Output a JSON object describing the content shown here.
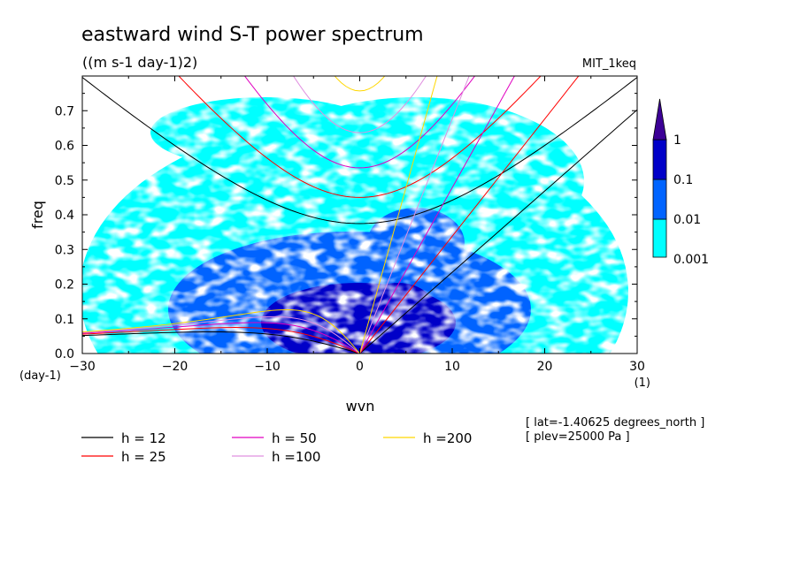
{
  "chart_data": {
    "type": "heatmap",
    "title": "eastward wind S-T power spectrum",
    "units": "((m s-1 day-1)2)",
    "model": "MIT_1keq",
    "xlabel": "wvn",
    "ylabel": "freq",
    "xunit": "(1)",
    "yunit": "(day-1)",
    "xlim": [
      -30,
      30
    ],
    "ylim": [
      0,
      0.8
    ],
    "xticks": [
      "-30",
      "-20",
      "-10",
      "0",
      "10",
      "20",
      "30"
    ],
    "yticks": [
      "0.0",
      "0.1",
      "0.2",
      "0.3",
      "0.4",
      "0.5",
      "0.6",
      "0.7"
    ],
    "colorbar": {
      "levels": [
        "0.001",
        "0.01",
        "0.1",
        "1"
      ],
      "colors": [
        "#00ffff",
        "#0064ff",
        "#0000c8",
        "#3c0096"
      ]
    },
    "dispersion_curves": [
      {
        "label": "h = 12",
        "h": 12,
        "color": "#000000"
      },
      {
        "label": "h = 25",
        "h": 25,
        "color": "#ff0000"
      },
      {
        "label": "h = 50",
        "h": 50,
        "color": "#e000c0"
      },
      {
        "label": "h =100",
        "h": 100,
        "color": "#e090e0"
      },
      {
        "label": "h =200",
        "h": 200,
        "color": "#ffd700"
      }
    ],
    "info": [
      "[ lat=-1.40625 degrees_north ]",
      "[ plev=25000 Pa ]"
    ]
  }
}
